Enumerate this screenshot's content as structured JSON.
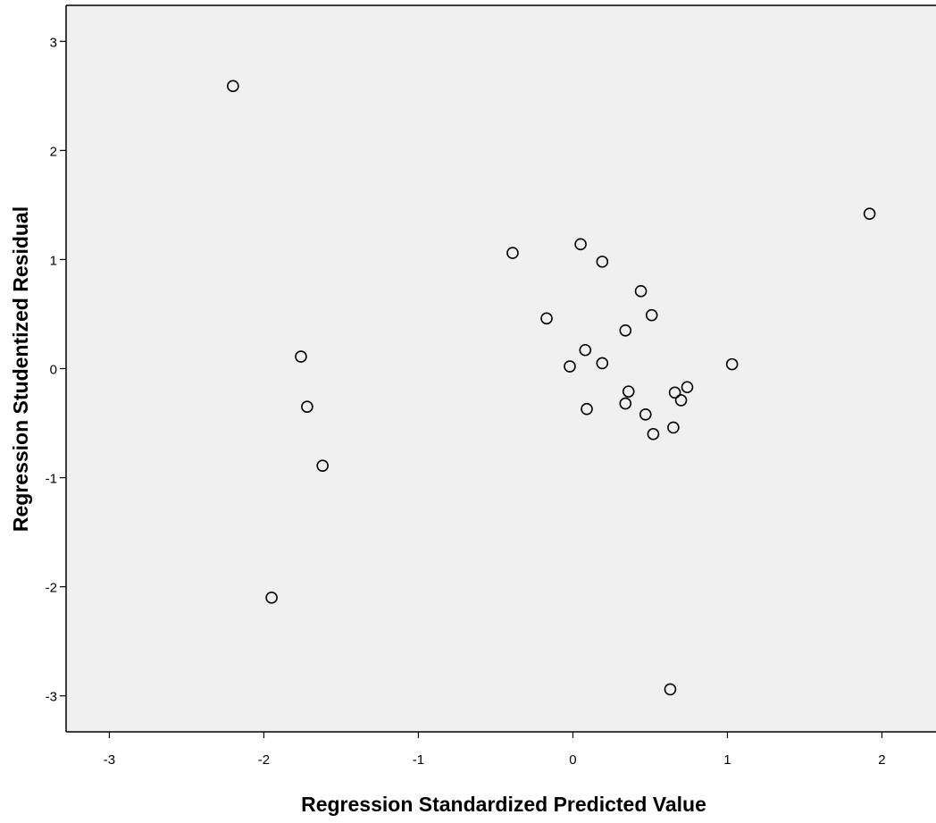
{
  "chart_data": {
    "type": "scatter",
    "title": "",
    "xlabel": "Regression Standardized Predicted Value",
    "ylabel": "Regression Studentized Residual",
    "xlim": [
      -3.28,
      2.35
    ],
    "ylim": [
      -3.33,
      3.33
    ],
    "x_ticks": [
      -3,
      -2,
      -1,
      0,
      1,
      2
    ],
    "y_ticks": [
      -3,
      -2,
      -1,
      0,
      1,
      2,
      3
    ],
    "grid": false,
    "legend": "none",
    "colors": {
      "plot_background": "#f0f0f0",
      "marker_stroke": "#000000",
      "axis": "#000000"
    },
    "points": [
      {
        "x": -2.2,
        "y": 2.59
      },
      {
        "x": -1.76,
        "y": 0.11
      },
      {
        "x": -1.72,
        "y": -0.35
      },
      {
        "x": -1.62,
        "y": -0.89
      },
      {
        "x": -1.95,
        "y": -2.1
      },
      {
        "x": -0.39,
        "y": 1.06
      },
      {
        "x": -0.17,
        "y": 0.46
      },
      {
        "x": -0.02,
        "y": 0.02
      },
      {
        "x": 0.05,
        "y": 1.14
      },
      {
        "x": 0.08,
        "y": 0.17
      },
      {
        "x": 0.09,
        "y": -0.37
      },
      {
        "x": 0.19,
        "y": 0.05
      },
      {
        "x": 0.19,
        "y": 0.98
      },
      {
        "x": 0.34,
        "y": 0.35
      },
      {
        "x": 0.34,
        "y": -0.32
      },
      {
        "x": 0.36,
        "y": -0.21
      },
      {
        "x": 0.44,
        "y": 0.71
      },
      {
        "x": 0.47,
        "y": -0.42
      },
      {
        "x": 0.51,
        "y": 0.49
      },
      {
        "x": 0.52,
        "y": -0.6
      },
      {
        "x": 0.65,
        "y": -0.54
      },
      {
        "x": 0.66,
        "y": -0.22
      },
      {
        "x": 0.7,
        "y": -0.29
      },
      {
        "x": 0.74,
        "y": -0.17
      },
      {
        "x": 0.63,
        "y": -2.94
      },
      {
        "x": 1.03,
        "y": 0.04
      },
      {
        "x": 1.92,
        "y": 1.42
      }
    ]
  }
}
